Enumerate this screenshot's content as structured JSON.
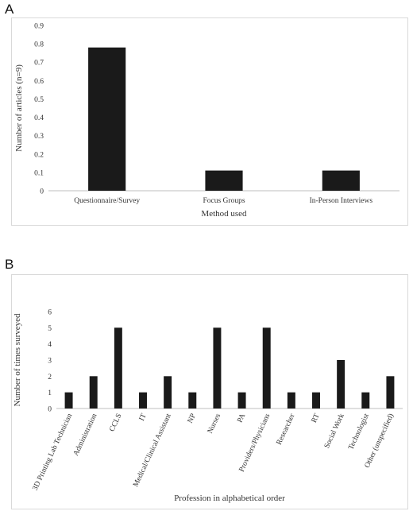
{
  "panels": [
    {
      "letter": "A"
    },
    {
      "letter": "B"
    }
  ],
  "chart_data": [
    {
      "type": "bar",
      "categories": [
        "Questionnaire/Survey",
        "Focus Groups",
        "In-Person Interviews"
      ],
      "values": [
        0.78,
        0.11,
        0.11
      ],
      "xlabel": "Method used",
      "ylabel": "Number of articles (n=9)",
      "ylim": [
        0,
        0.9
      ],
      "yticks": [
        0,
        0.1,
        0.2,
        0.3,
        0.4,
        0.5,
        0.6,
        0.7,
        0.8,
        0.9
      ],
      "grid": false,
      "color": "#1a1a1a"
    },
    {
      "type": "bar",
      "categories": [
        "3D Printing Lab Technician",
        "Administration",
        "CCLS",
        "IT",
        "Medical/Clinical Assistant",
        "NP",
        "Nurses",
        "PA",
        "Providers/Physicians",
        "Researcher",
        "RT",
        "Social Work",
        "Technologist",
        "Other (unspecified)"
      ],
      "values": [
        1,
        2,
        5,
        1,
        2,
        1,
        5,
        1,
        5,
        1,
        1,
        3,
        1,
        2
      ],
      "xlabel": "Profession in alphabetical order",
      "ylabel": "Number of times surveyed",
      "ylim": [
        0,
        6
      ],
      "yticks": [
        0,
        1,
        2,
        3,
        4,
        5,
        6
      ],
      "grid": false,
      "color": "#1a1a1a"
    }
  ]
}
